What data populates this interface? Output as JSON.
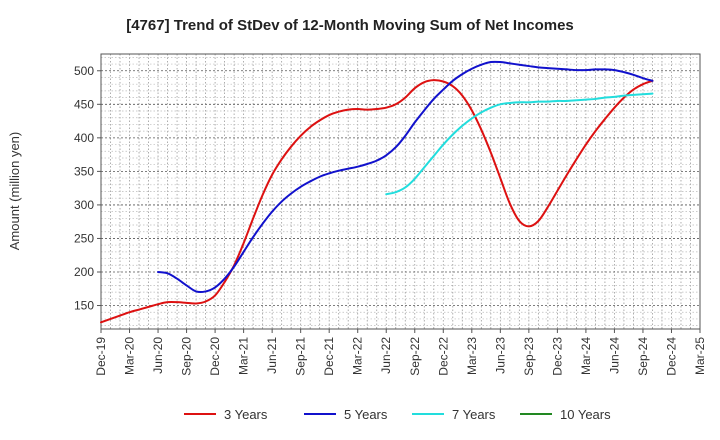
{
  "chart_data": {
    "type": "line",
    "title": "[4767]  Trend of StDev of 12-Month Moving Sum of Net Incomes",
    "ylabel": "Amount (million yen)",
    "xlabel": "",
    "ylim": [
      115,
      525
    ],
    "yticks": [
      150,
      200,
      250,
      300,
      350,
      400,
      450,
      500
    ],
    "xlim": [
      "2019-12",
      "2025-03"
    ],
    "xticks": [
      "Dec-19",
      "Mar-20",
      "Jun-20",
      "Sep-20",
      "Dec-20",
      "Mar-21",
      "Jun-21",
      "Sep-21",
      "Dec-21",
      "Mar-22",
      "Jun-22",
      "Sep-22",
      "Dec-22",
      "Mar-23",
      "Jun-23",
      "Sep-23",
      "Dec-23",
      "Mar-24",
      "Jun-24",
      "Sep-24",
      "Dec-24",
      "Mar-25"
    ],
    "grid": true,
    "legend_position": "bottom",
    "series": [
      {
        "name": "3 Years",
        "color": "#dd1111",
        "points": [
          [
            "2019-12",
            125
          ],
          [
            "2020-01",
            130
          ],
          [
            "2020-02",
            135
          ],
          [
            "2020-03",
            140
          ],
          [
            "2020-04",
            144
          ],
          [
            "2020-05",
            148
          ],
          [
            "2020-06",
            152
          ],
          [
            "2020-07",
            155
          ],
          [
            "2020-08",
            155
          ],
          [
            "2020-09",
            154
          ],
          [
            "2020-10",
            153
          ],
          [
            "2020-11",
            156
          ],
          [
            "2020-12",
            165
          ],
          [
            "2021-01",
            185
          ],
          [
            "2021-02",
            210
          ],
          [
            "2021-03",
            243
          ],
          [
            "2021-04",
            280
          ],
          [
            "2021-05",
            315
          ],
          [
            "2021-06",
            345
          ],
          [
            "2021-07",
            368
          ],
          [
            "2021-08",
            387
          ],
          [
            "2021-09",
            403
          ],
          [
            "2021-10",
            416
          ],
          [
            "2021-11",
            426
          ],
          [
            "2021-12",
            434
          ],
          [
            "2022-01",
            439
          ],
          [
            "2022-02",
            442
          ],
          [
            "2022-03",
            443
          ],
          [
            "2022-04",
            442
          ],
          [
            "2022-05",
            443
          ],
          [
            "2022-06",
            445
          ],
          [
            "2022-07",
            450
          ],
          [
            "2022-08",
            460
          ],
          [
            "2022-09",
            474
          ],
          [
            "2022-10",
            483
          ],
          [
            "2022-11",
            486
          ],
          [
            "2022-12",
            484
          ],
          [
            "2023-01",
            477
          ],
          [
            "2023-02",
            463
          ],
          [
            "2023-03",
            441
          ],
          [
            "2023-04",
            412
          ],
          [
            "2023-05",
            378
          ],
          [
            "2023-06",
            340
          ],
          [
            "2023-07",
            302
          ],
          [
            "2023-08",
            276
          ],
          [
            "2023-09",
            268
          ],
          [
            "2023-10",
            276
          ],
          [
            "2023-11",
            297
          ],
          [
            "2023-12",
            321
          ],
          [
            "2024-01",
            345
          ],
          [
            "2024-02",
            368
          ],
          [
            "2024-03",
            390
          ],
          [
            "2024-04",
            410
          ],
          [
            "2024-05",
            428
          ],
          [
            "2024-06",
            445
          ],
          [
            "2024-07",
            460
          ],
          [
            "2024-08",
            472
          ],
          [
            "2024-09",
            480
          ],
          [
            "2024-10",
            485
          ]
        ]
      },
      {
        "name": "5 Years",
        "color": "#1111cc",
        "points": [
          [
            "2020-06",
            200
          ],
          [
            "2020-07",
            198
          ],
          [
            "2020-08",
            190
          ],
          [
            "2020-09",
            180
          ],
          [
            "2020-10",
            171
          ],
          [
            "2020-11",
            171
          ],
          [
            "2020-12",
            177
          ],
          [
            "2021-01",
            190
          ],
          [
            "2021-02",
            208
          ],
          [
            "2021-03",
            230
          ],
          [
            "2021-04",
            252
          ],
          [
            "2021-05",
            272
          ],
          [
            "2021-06",
            290
          ],
          [
            "2021-07",
            305
          ],
          [
            "2021-08",
            317
          ],
          [
            "2021-09",
            327
          ],
          [
            "2021-10",
            335
          ],
          [
            "2021-11",
            342
          ],
          [
            "2021-12",
            347
          ],
          [
            "2022-01",
            351
          ],
          [
            "2022-02",
            354
          ],
          [
            "2022-03",
            357
          ],
          [
            "2022-04",
            361
          ],
          [
            "2022-05",
            366
          ],
          [
            "2022-06",
            374
          ],
          [
            "2022-07",
            386
          ],
          [
            "2022-08",
            403
          ],
          [
            "2022-09",
            423
          ],
          [
            "2022-10",
            441
          ],
          [
            "2022-11",
            458
          ],
          [
            "2022-12",
            472
          ],
          [
            "2023-01",
            485
          ],
          [
            "2023-02",
            495
          ],
          [
            "2023-03",
            503
          ],
          [
            "2023-04",
            509
          ],
          [
            "2023-05",
            513
          ],
          [
            "2023-06",
            513
          ],
          [
            "2023-07",
            511
          ],
          [
            "2023-08",
            509
          ],
          [
            "2023-09",
            507
          ],
          [
            "2023-10",
            505
          ],
          [
            "2023-11",
            504
          ],
          [
            "2023-12",
            503
          ],
          [
            "2024-01",
            502
          ],
          [
            "2024-02",
            501
          ],
          [
            "2024-03",
            501
          ],
          [
            "2024-04",
            502
          ],
          [
            "2024-05",
            502
          ],
          [
            "2024-06",
            501
          ],
          [
            "2024-07",
            498
          ],
          [
            "2024-08",
            494
          ],
          [
            "2024-09",
            489
          ],
          [
            "2024-10",
            485
          ]
        ]
      },
      {
        "name": "7 Years",
        "color": "#22dddd",
        "points": [
          [
            "2022-06",
            316
          ],
          [
            "2022-07",
            319
          ],
          [
            "2022-08",
            326
          ],
          [
            "2022-09",
            339
          ],
          [
            "2022-10",
            356
          ],
          [
            "2022-11",
            373
          ],
          [
            "2022-12",
            390
          ],
          [
            "2023-01",
            405
          ],
          [
            "2023-02",
            418
          ],
          [
            "2023-03",
            429
          ],
          [
            "2023-04",
            438
          ],
          [
            "2023-05",
            445
          ],
          [
            "2023-06",
            450
          ],
          [
            "2023-07",
            452
          ],
          [
            "2023-08",
            453
          ],
          [
            "2023-09",
            453
          ],
          [
            "2023-10",
            454
          ],
          [
            "2023-11",
            454
          ],
          [
            "2023-12",
            455
          ],
          [
            "2024-01",
            455
          ],
          [
            "2024-02",
            456
          ],
          [
            "2024-03",
            457
          ],
          [
            "2024-04",
            458
          ],
          [
            "2024-05",
            460
          ],
          [
            "2024-06",
            461
          ],
          [
            "2024-07",
            463
          ],
          [
            "2024-08",
            464
          ],
          [
            "2024-09",
            465
          ],
          [
            "2024-10",
            466
          ]
        ]
      },
      {
        "name": "10 Years",
        "color": "#228822",
        "points": []
      }
    ]
  }
}
